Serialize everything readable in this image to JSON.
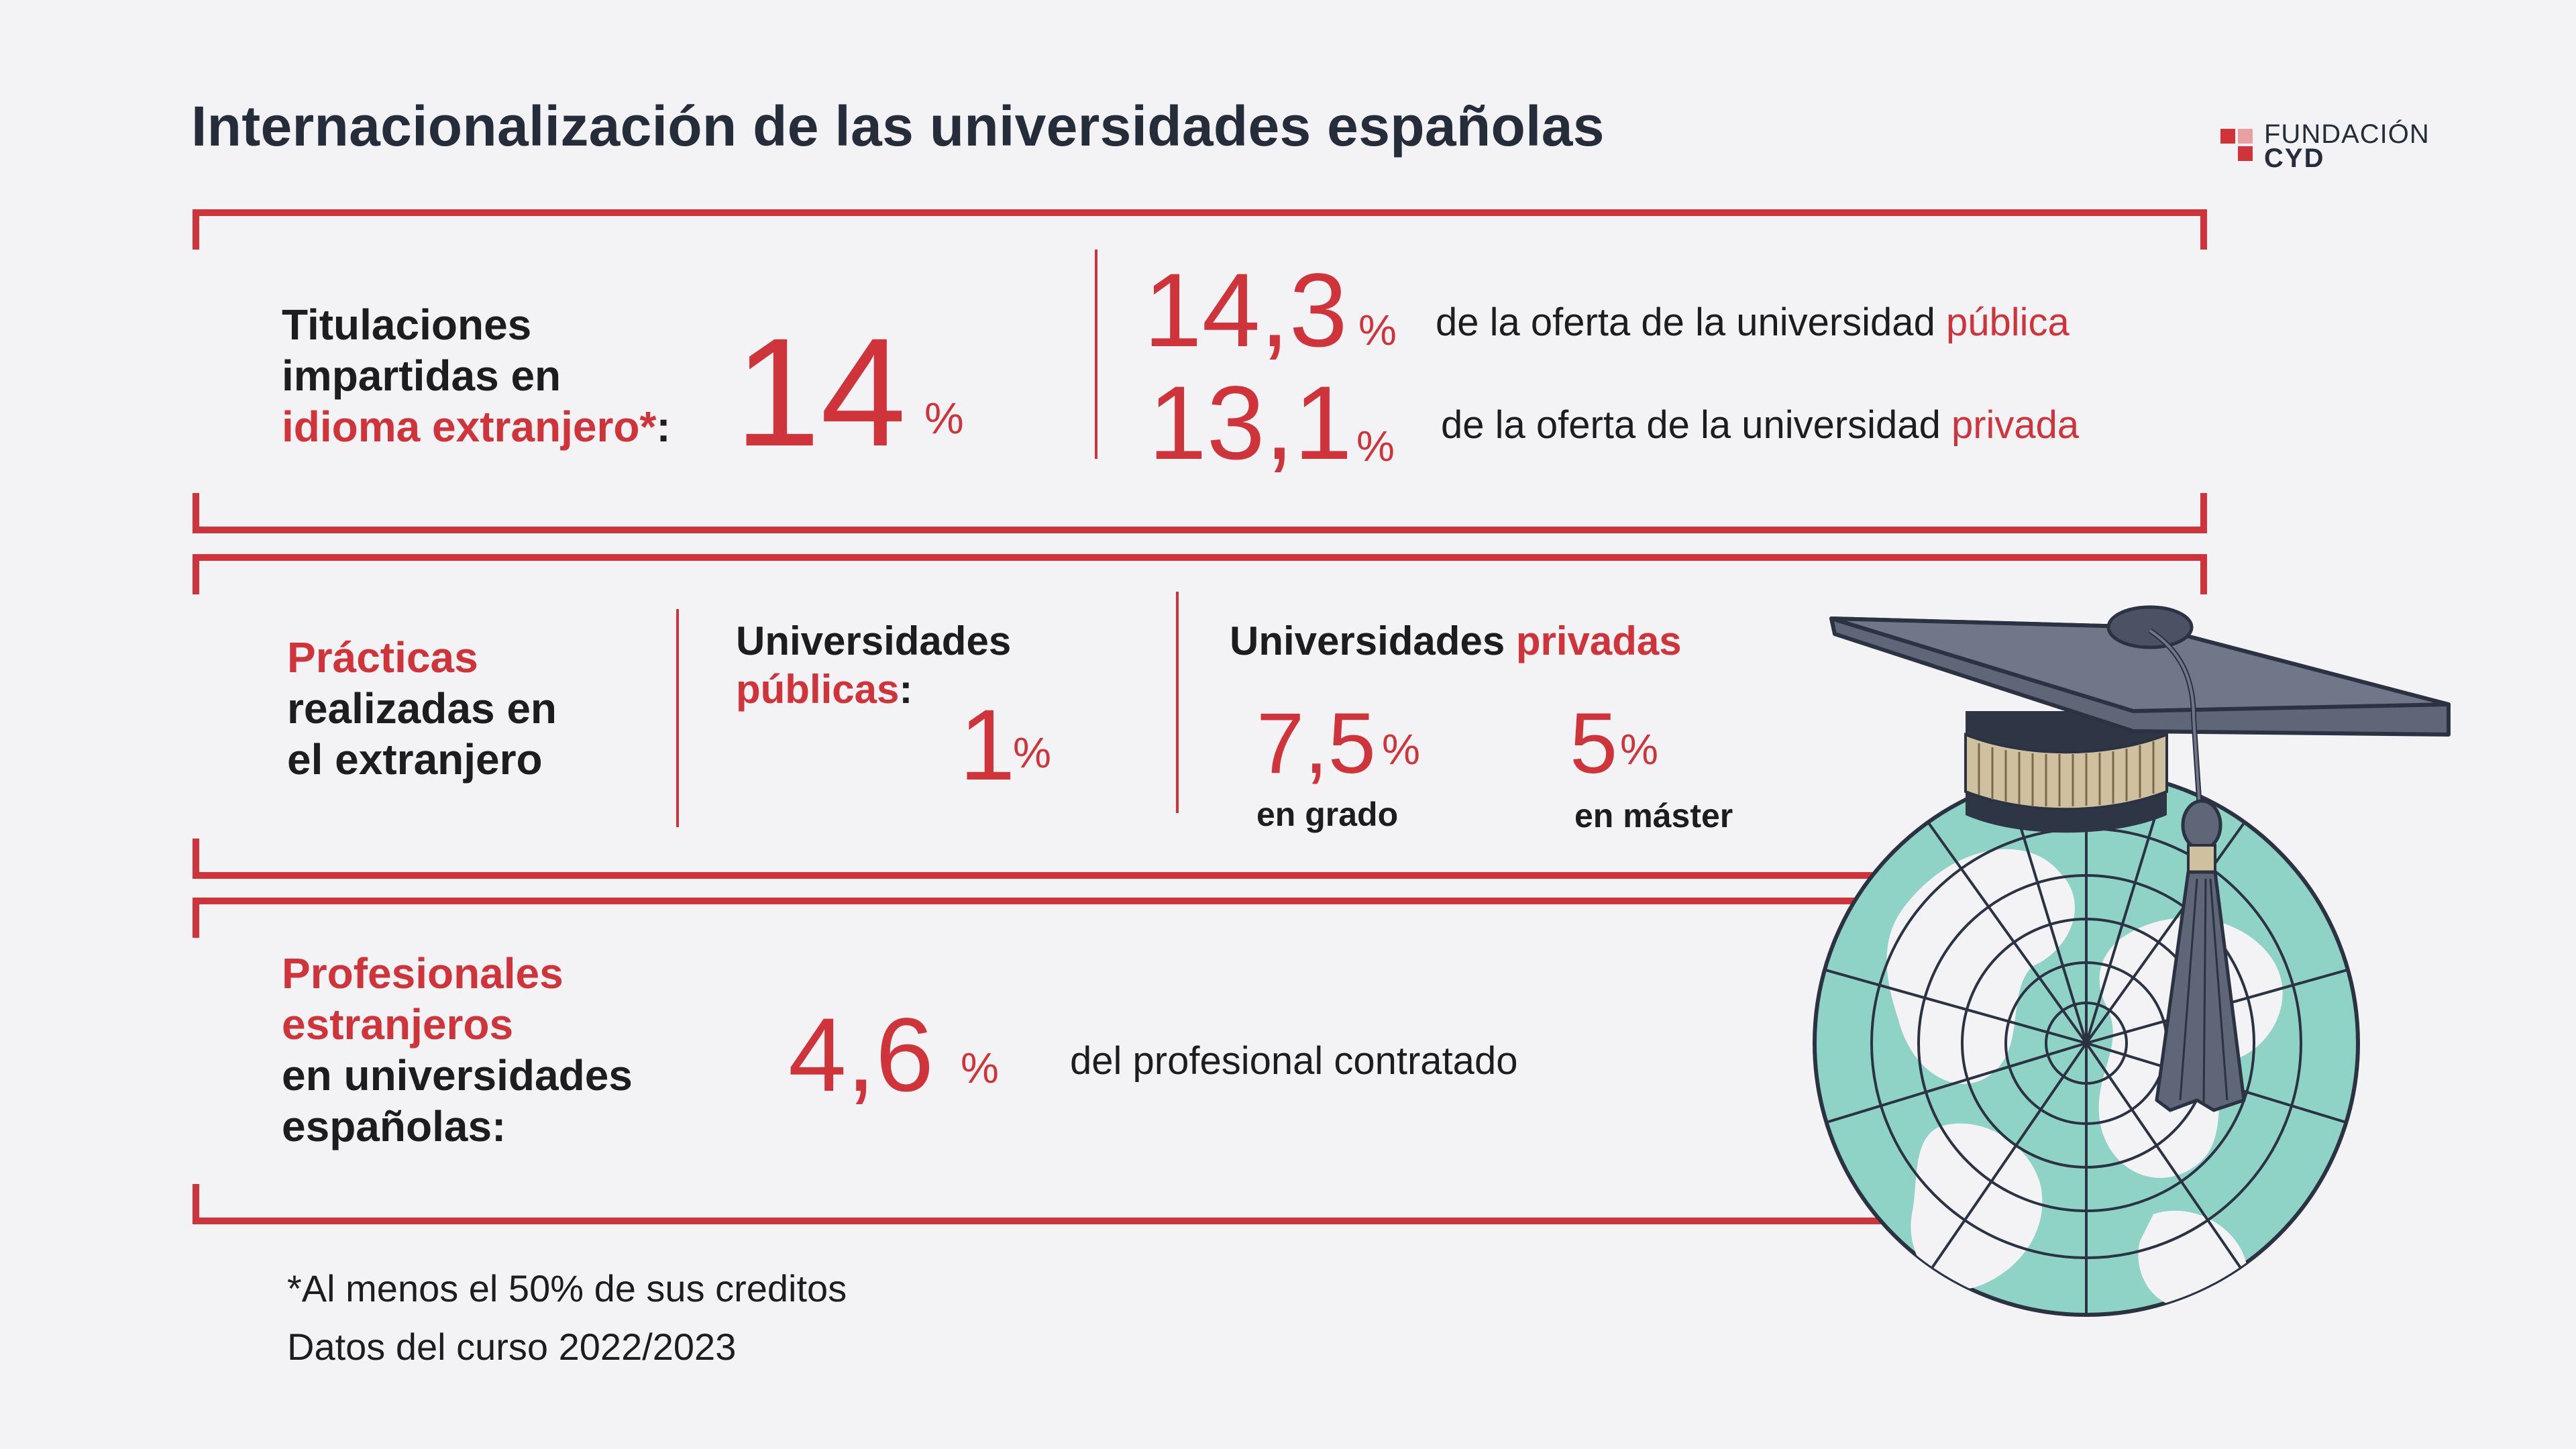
{
  "title": "Internacionalización de las universidades españolas",
  "logo": {
    "line1": "FUNDACIÓN",
    "line2": "CYD"
  },
  "section1": {
    "label_line1": "Titulaciones",
    "label_line2": "impartidas en",
    "label_line3_red": "idioma extranjero*",
    "label_line3_colon": ":",
    "total_value": "14",
    "total_unit": "%",
    "public_value": "14,3",
    "public_unit": "%",
    "public_text": "de la oferta de la universidad ",
    "public_text_red": "pública",
    "private_value": "13,1",
    "private_unit": "%",
    "private_text": "de la oferta de la universidad ",
    "private_text_red": "privada"
  },
  "section2": {
    "label_line1_red": "Prácticas",
    "label_line2": "realizadas en",
    "label_line3": "el extranjero",
    "public_heading_line1": "Universidades",
    "public_heading_line2_red": "públicas",
    "public_heading_colon": ":",
    "public_value": "1",
    "public_unit": "%",
    "private_heading": "Universidades ",
    "private_heading_red": "privadas",
    "grado_value": "7,5",
    "grado_unit": "%",
    "grado_label": "en grado",
    "master_value": "5",
    "master_unit": "%",
    "master_label": "en máster"
  },
  "section3": {
    "label_line1_red": "Profesionales",
    "label_line2_red": "estranjeros",
    "label_line3": "en universidades",
    "label_line4": "españolas:",
    "value": "4,6",
    "unit": "%",
    "text": "del profesional contratado"
  },
  "footnotes": {
    "line1": "*Al menos el 50% de sus creditos",
    "line2": "Datos del curso 2022/2023"
  },
  "colors": {
    "accent": "#d0343b",
    "title": "#262d3a",
    "globe": "#8fd3c7",
    "cap": "#5f6677"
  },
  "illustration": {
    "icon": "graduation-cap-globe-icon"
  }
}
